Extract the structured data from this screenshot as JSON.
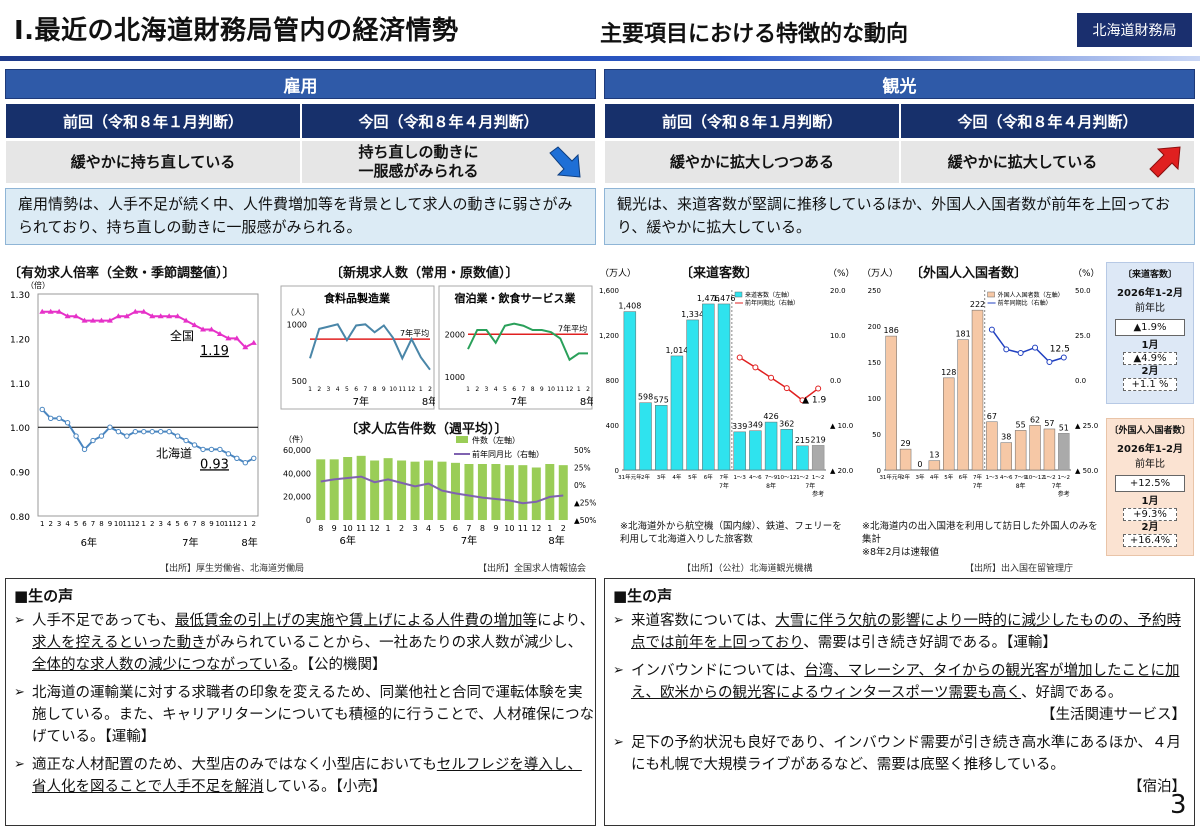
{
  "header": {
    "title": "Ⅰ.最近の北海道財務局管内の経済情勢",
    "subtitle": "主要項目における特徴的な動向",
    "org": "北海道財務局"
  },
  "left": {
    "section": "雇用",
    "prev_head": "前回（令和８年１月判断）",
    "curr_head": "今回（令和８年４月判断）",
    "prev_val": "緩やかに持ち直している",
    "curr_val_1": "持ち直しの動きに",
    "curr_val_2": "一服感がみられる",
    "arrow": "down-right",
    "summary": "雇用情勢は、人手不足が続く中、人件費増加等を背景として求人の動きに弱さがみられており、持ち直しの動きに一服感がみられる。"
  },
  "right": {
    "section": "観光",
    "prev_head": "前回（令和８年１月判断）",
    "curr_head": "今回（令和８年４月判断）",
    "prev_val": "緩やかに拡大しつつある",
    "curr_val": "緩やかに拡大している",
    "arrow": "up-right",
    "summary": "観光は、来道客数が堅調に推移しているほか、外国人入国者数が前年を上回っており、緩やかに拡大している。"
  },
  "colors": {
    "navy": "#17306b",
    "blue": "#2f5aa8",
    "summary_bg": "#dcebf5",
    "cyan": "#2fe3ee",
    "peach": "#f6c8a6",
    "green": "#9acd57",
    "purple": "#7f62b0",
    "magenta": "#e631c8",
    "steel": "#4a86c0"
  },
  "chart_data": [
    {
      "type": "line",
      "title": "〔有効求人倍率（全数・季節調整値）〕",
      "ylabel": "（倍）",
      "ylim": [
        0.8,
        1.3
      ],
      "yticks": [
        "1.30",
        "1.20",
        "1.10",
        "1.00",
        "0.90",
        "0.80"
      ],
      "xticks": [
        "1",
        "2",
        "3",
        "4",
        "5",
        "6",
        "7",
        "8",
        "9",
        "10",
        "11",
        "12",
        "1",
        "2",
        "3",
        "4",
        "5",
        "6",
        "7",
        "8",
        "9",
        "10",
        "11",
        "12",
        "1",
        "2"
      ],
      "xyears": [
        "6年",
        "7年",
        "8年"
      ],
      "series": [
        {
          "name": "全国",
          "end_label": "1.19",
          "values": [
            1.26,
            1.26,
            1.26,
            1.25,
            1.25,
            1.24,
            1.24,
            1.24,
            1.24,
            1.25,
            1.25,
            1.26,
            1.26,
            1.25,
            1.25,
            1.25,
            1.25,
            1.24,
            1.23,
            1.22,
            1.22,
            1.21,
            1.2,
            1.2,
            1.18,
            1.19
          ]
        },
        {
          "name": "北海道",
          "end_label": "0.93",
          "values": [
            1.04,
            1.02,
            1.02,
            1.01,
            0.98,
            0.95,
            0.97,
            0.98,
            1.0,
            0.99,
            0.98,
            0.99,
            0.99,
            0.99,
            0.99,
            0.99,
            0.98,
            0.97,
            0.96,
            0.95,
            0.95,
            0.95,
            0.94,
            0.93,
            0.92,
            0.93
          ]
        }
      ]
    },
    {
      "type": "line",
      "title": "〔新規求人数（常用・原数値）〕",
      "panel": "食料品製造業",
      "ylabel": "（人）",
      "yticks": [
        "1000",
        "500"
      ],
      "ylim": [
        500,
        1100
      ],
      "avg_label": "7年平均",
      "avg": 870,
      "xticks": [
        "1",
        "2",
        "3",
        "4",
        "5",
        "6",
        "7",
        "8",
        "9",
        "10",
        "11",
        "12",
        "1",
        "2"
      ],
      "xyears": [
        "7年",
        "8年"
      ],
      "values": [
        700,
        960,
        980,
        1000,
        860,
        990,
        1000,
        930,
        990,
        880,
        700,
        870,
        710,
        600
      ]
    },
    {
      "type": "line",
      "panel": "宿泊業・飲食サービス業",
      "yticks": [
        "2000",
        "1000"
      ],
      "ylim": [
        900,
        2500
      ],
      "avg_label": "7年平均",
      "avg": 2000,
      "xticks": [
        "1",
        "2",
        "3",
        "4",
        "5",
        "6",
        "7",
        "8",
        "9",
        "10",
        "11",
        "12",
        "1",
        "2"
      ],
      "xyears": [
        "7年",
        "8年"
      ],
      "values": [
        1650,
        2100,
        2100,
        1800,
        2200,
        2250,
        2200,
        2100,
        2100,
        2050,
        1900,
        1400,
        1550,
        1550
      ]
    },
    {
      "type": "bar",
      "title": "〔求人広告件数（週平均）〕",
      "ylabel": "（件）",
      "yticks": [
        "60,000",
        "40,000",
        "20,000",
        "0"
      ],
      "y2ticks": [
        "50%",
        "25%",
        "0%",
        "▲25%",
        "▲50%"
      ],
      "legend": [
        "件数（左軸）",
        "前年同月比（右軸）"
      ],
      "categories": [
        "8",
        "9",
        "10",
        "11",
        "12",
        "1",
        "2",
        "3",
        "4",
        "5",
        "6",
        "7",
        "8",
        "9",
        "10",
        "11",
        "12",
        "1",
        "2"
      ],
      "xyears": [
        "6年",
        "7年",
        "8年"
      ],
      "series": [
        {
          "name": "件数（左軸）",
          "values": [
            52000,
            52000,
            54000,
            55000,
            51000,
            53000,
            51000,
            50000,
            51000,
            50000,
            49000,
            48000,
            48000,
            48000,
            47000,
            47000,
            45000,
            48000,
            47000
          ]
        },
        {
          "name": "前年同月比（右軸）",
          "values": [
            5,
            8,
            10,
            12,
            4,
            8,
            3,
            -2,
            2,
            -8,
            -12,
            -15,
            -18,
            -20,
            -22,
            -26,
            -24,
            -17,
            -15
          ]
        }
      ]
    },
    {
      "type": "bar",
      "title": "〔来道客数〕",
      "ylabel": "（万人）",
      "y2label": "（%）",
      "yticks": [
        "1,600",
        "1,200",
        "800",
        "400",
        "0"
      ],
      "y2ticks": [
        "20.0",
        "10.0",
        "0.0",
        "▲ 10.0",
        "▲ 20.0"
      ],
      "legend": [
        "来道客数（左軸）",
        "前年同期比（右軸）"
      ],
      "categories": [
        "31年元年",
        "2年",
        "3年",
        "4年",
        "5年",
        "6年",
        "7年",
        "1〜3",
        "4〜6",
        "7〜9",
        "10〜12",
        "1〜2",
        "1〜2"
      ],
      "values": [
        1408,
        598,
        575,
        1014,
        1334,
        1476,
        1476,
        339,
        349,
        426,
        362,
        215,
        219
      ],
      "value_labels": [
        "1,408",
        "598",
        "575",
        "1,014",
        "1,334",
        "1,476",
        "1,476",
        "339",
        "349",
        "426",
        "362",
        "215",
        "219"
      ],
      "yoy": [
        5.0,
        2.8,
        0.5,
        -1.8,
        -4.5,
        -1.9
      ],
      "yoy_last_label": "▲ 1.9",
      "annotations": [
        "7年",
        "8年",
        "7年",
        "参考"
      ],
      "note": "※北海道外から航空機（国内線）、鉄道、フェリーを利用して北海道入りした旅客数"
    },
    {
      "type": "bar",
      "title": "〔外国人入国者数〕",
      "ylabel": "（万人）",
      "y2label": "（%）",
      "yticks": [
        "250",
        "200",
        "150",
        "100",
        "50",
        "0"
      ],
      "y2ticks": [
        "50.0",
        "25.0",
        "0.0",
        "▲ 25.0",
        "▲ 50.0"
      ],
      "legend": [
        "外国人入国者数（左軸）",
        "前年同期比（右軸）"
      ],
      "categories": [
        "31年元年",
        "2年",
        "3年",
        "4年",
        "5年",
        "6年",
        "7年",
        "1〜3",
        "4〜6",
        "7〜9",
        "10〜12",
        "1〜2",
        "1〜2"
      ],
      "values": [
        186,
        29,
        0,
        13,
        128,
        181,
        222,
        67,
        38,
        55,
        62,
        57,
        51
      ],
      "yoy": [
        28,
        17,
        15,
        18,
        10,
        12.5
      ],
      "yoy_last_label": "12.5",
      "annotations": [
        "7年",
        "8年",
        "7年",
        "参考"
      ],
      "note_1": "※北海道内の出入国港を利用して訪日した外国人のみを集計",
      "note_2": "※8年2月は速報値"
    }
  ],
  "sources": {
    "left1": "【出所】厚生労働省、北海道労働局",
    "left2": "【出所】全国求人情報協会",
    "right1": "【出所】（公社）北海道観光機構",
    "right2": "【出所】出入国在留管理庁"
  },
  "side_boxes": {
    "visitors": {
      "title": "〔来道客数〕",
      "period": "2026年1-2月",
      "label": "前年比",
      "total": "▲1.9%",
      "m1_label": "1月",
      "m1": "▲4.9%",
      "m2_label": "2月",
      "m2": "+1.1 %"
    },
    "foreign": {
      "title": "〔外国人入国者数〕",
      "period": "2026年1-2月",
      "label": "前年比",
      "total": "+12.5%",
      "m1_label": "1月",
      "m1": "+9.3%",
      "m2_label": "2月",
      "m2": "+16.4%"
    }
  },
  "voices_left": {
    "head": "■生の声",
    "items": [
      {
        "segs": [
          {
            "t": "人手不足であっても、"
          },
          {
            "t": "最低賃金の引上げの実施や賃上げによる人件費の増加等",
            "u": true
          },
          {
            "t": "により、"
          },
          {
            "t": "求人を控えるといった動き",
            "u": true
          },
          {
            "t": "がみられていることから、一社あたりの求人数が減少し、"
          },
          {
            "t": "全体的な求人数の減少につながっている",
            "u": true
          },
          {
            "t": "。【公的機関】"
          }
        ]
      },
      {
        "segs": [
          {
            "t": "北海道の運輸業に対する求職者の印象を変えるため、同業他社と合同で運転体験を実施している。また、キャリアリターンについても積極的に行うことで、人材確保につなげている。【運輸】"
          }
        ]
      },
      {
        "segs": [
          {
            "t": "適正な人材配置のため、大型店のみではなく小型店においても"
          },
          {
            "t": "セルフレジを導入し、省人化を図ることで人手不足を解消",
            "u": true
          },
          {
            "t": "している。【小売】"
          }
        ]
      }
    ]
  },
  "voices_right": {
    "head": "■生の声",
    "items": [
      {
        "segs": [
          {
            "t": "来道客数については、"
          },
          {
            "t": "大雪に伴う欠航の影響により一時的に減少したものの、予約時点では前年を上回っており",
            "u": true
          },
          {
            "t": "、需要は引き続き好調である。【運輸】"
          }
        ]
      },
      {
        "segs": [
          {
            "t": "インバウンドについては、"
          },
          {
            "t": "台湾、マレーシア、タイからの観光客が増加したことに加え、欧米からの観光客によるウィンタースポーツ需要も高く",
            "u": true
          },
          {
            "t": "、好調である。"
          }
        ],
        "tail": "【生活関連サービス】"
      },
      {
        "segs": [
          {
            "t": "足下の予約状況も良好であり、インバウンド需要が引き続き高水準にあるほか、４月にも札幌で大規模ライブがあるなど、需要は底堅く推移している。"
          }
        ],
        "tail": "【宿泊】"
      }
    ]
  },
  "page_number": "3"
}
